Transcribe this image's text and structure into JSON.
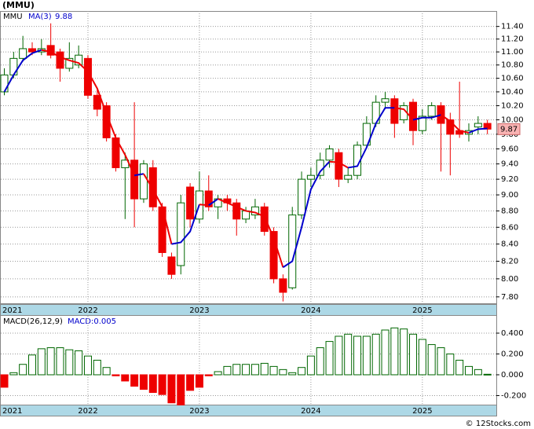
{
  "chart_data": [
    {
      "type": "candlestick",
      "title": "(MMU)",
      "symbol": "MMU",
      "ma_name": "MA(3)",
      "ma_last": 9.88,
      "last_price": 9.87,
      "log_scale": true,
      "grid": true,
      "xlabels": [
        "2021",
        "2022",
        "2023",
        "2024",
        "2025"
      ],
      "ylim": [
        7.73,
        11.65
      ],
      "yticks": [
        {
          "value": 7.8,
          "label": "7.80"
        },
        {
          "value": 8,
          "label": "8.00"
        },
        {
          "value": 8.2,
          "label": "8.20"
        },
        {
          "value": 8.4,
          "label": "8.40"
        },
        {
          "value": 8.6,
          "label": "8.60"
        },
        {
          "value": 8.8,
          "label": "8.80"
        },
        {
          "value": 9,
          "label": "9.00"
        },
        {
          "value": 9.2,
          "label": "9.20"
        },
        {
          "value": 9.4,
          "label": "9.40"
        },
        {
          "value": 9.6,
          "label": "9.60"
        },
        {
          "value": 9.8,
          "label": "9.80"
        },
        {
          "value": 10,
          "label": "10.00"
        },
        {
          "value": 10.2,
          "label": "10.20"
        },
        {
          "value": 10.4,
          "label": "10.40"
        },
        {
          "value": 10.6,
          "label": "10.60"
        },
        {
          "value": 10.8,
          "label": "10.80"
        },
        {
          "value": 11,
          "label": "11.00"
        },
        {
          "value": 11.2,
          "label": "11.20"
        },
        {
          "value": 11.4,
          "label": "11.40"
        }
      ],
      "up_color": "#006600",
      "down_color": "#ee0000",
      "ma_up_color": "#0000cc",
      "ma_down_color": "#ee0000",
      "open": [
        10.4,
        10.65,
        10.9,
        11.05,
        11.0,
        11.1,
        11.0,
        10.75,
        10.8,
        10.9,
        10.35,
        10.2,
        9.75,
        9.35,
        9.45,
        8.95,
        9.35,
        8.85,
        8.25,
        8.15,
        9.1,
        8.7,
        9.05,
        8.85,
        8.95,
        8.9,
        8.7,
        8.75,
        8.85,
        8.55,
        8.0,
        7.9,
        8.75,
        9.2,
        9.25,
        9.45,
        9.55,
        9.2,
        9.25,
        9.65,
        9.95,
        10.25,
        10.3,
        10.0,
        10.25,
        9.85,
        10.05,
        10.2,
        10.0,
        9.85,
        9.8,
        9.9,
        9.95
      ],
      "high": [
        10.75,
        11.0,
        11.25,
        11.15,
        11.2,
        11.45,
        11.05,
        11.15,
        11.1,
        10.95,
        10.45,
        10.25,
        9.8,
        9.55,
        10.25,
        9.45,
        9.45,
        8.9,
        8.3,
        9.0,
        9.15,
        9.3,
        9.25,
        9.0,
        9.0,
        8.95,
        8.85,
        8.95,
        8.9,
        8.6,
        8.05,
        8.85,
        9.3,
        9.35,
        9.55,
        9.65,
        9.6,
        9.35,
        9.7,
        10.05,
        10.35,
        10.4,
        10.35,
        10.25,
        10.3,
        10.15,
        10.25,
        10.25,
        10.1,
        10.55,
        9.95,
        10.05,
        10.0
      ],
      "low": [
        10.35,
        10.6,
        10.85,
        10.95,
        10.95,
        10.9,
        10.55,
        10.7,
        10.75,
        10.3,
        10.05,
        9.7,
        9.3,
        8.7,
        8.6,
        8.9,
        8.8,
        8.25,
        8.0,
        8.05,
        8.6,
        8.65,
        8.8,
        8.7,
        8.8,
        8.5,
        8.65,
        8.7,
        8.5,
        7.95,
        7.75,
        7.88,
        8.7,
        9.1,
        9.2,
        9.35,
        9.1,
        9.15,
        9.2,
        9.6,
        9.9,
        10.15,
        9.75,
        9.95,
        9.65,
        9.8,
        10.0,
        9.3,
        9.25,
        9.75,
        9.7,
        9.8,
        9.8
      ],
      "close": [
        10.65,
        10.9,
        11.05,
        11.0,
        11.05,
        10.95,
        10.75,
        10.9,
        10.95,
        10.35,
        10.15,
        9.75,
        9.35,
        9.45,
        8.95,
        9.4,
        8.85,
        8.3,
        8.05,
        8.9,
        8.7,
        9.05,
        8.85,
        8.95,
        8.9,
        8.7,
        8.8,
        8.85,
        8.55,
        8.0,
        7.85,
        8.75,
        9.2,
        9.25,
        9.45,
        9.6,
        9.2,
        9.25,
        9.65,
        9.95,
        10.25,
        10.3,
        9.95,
        10.2,
        9.85,
        10.05,
        10.2,
        9.95,
        9.8,
        9.8,
        9.85,
        9.95,
        9.87
      ],
      "ma": [
        10.4,
        10.65,
        10.87,
        10.98,
        11.03,
        11.0,
        10.92,
        10.87,
        10.83,
        10.7,
        10.45,
        10.08,
        9.75,
        9.52,
        9.25,
        9.27,
        9.07,
        8.85,
        8.4,
        8.42,
        8.55,
        8.88,
        8.87,
        8.95,
        8.9,
        8.85,
        8.8,
        8.78,
        8.73,
        8.47,
        8.13,
        8.2,
        8.6,
        9.07,
        9.3,
        9.43,
        9.42,
        9.35,
        9.37,
        9.62,
        9.95,
        10.17,
        10.17,
        10.15,
        10.0,
        10.03,
        10.03,
        10.07,
        9.98,
        9.85,
        9.82,
        9.87,
        9.88
      ]
    },
    {
      "type": "bar",
      "title": "MACD(26,12,9)",
      "value_label": "MACD:0.005",
      "xlabels": [
        "2021",
        "2022",
        "2023",
        "2024",
        "2025"
      ],
      "ylim": [
        -0.287,
        0.566
      ],
      "yticks": [
        {
          "value": -0.2,
          "label": "-0.200"
        },
        {
          "value": 0,
          "label": "0.000"
        },
        {
          "value": 0.2,
          "label": "0.200"
        },
        {
          "value": 0.4,
          "label": "0.400"
        }
      ],
      "up_color": "#006600",
      "down_color": "#ee0000",
      "values": [
        -0.12,
        0.02,
        0.1,
        0.19,
        0.25,
        0.26,
        0.26,
        0.24,
        0.23,
        0.18,
        0.14,
        0.07,
        -0.01,
        -0.06,
        -0.11,
        -0.14,
        -0.17,
        -0.19,
        -0.27,
        -0.29,
        -0.15,
        -0.12,
        -0.01,
        0.03,
        0.08,
        0.1,
        0.1,
        0.1,
        0.11,
        0.08,
        0.05,
        0.02,
        0.07,
        0.18,
        0.26,
        0.32,
        0.37,
        0.39,
        0.37,
        0.37,
        0.39,
        0.43,
        0.45,
        0.44,
        0.39,
        0.34,
        0.29,
        0.26,
        0.2,
        0.14,
        0.08,
        0.05,
        0.005
      ]
    }
  ],
  "footer": "© 12Stocks.com"
}
